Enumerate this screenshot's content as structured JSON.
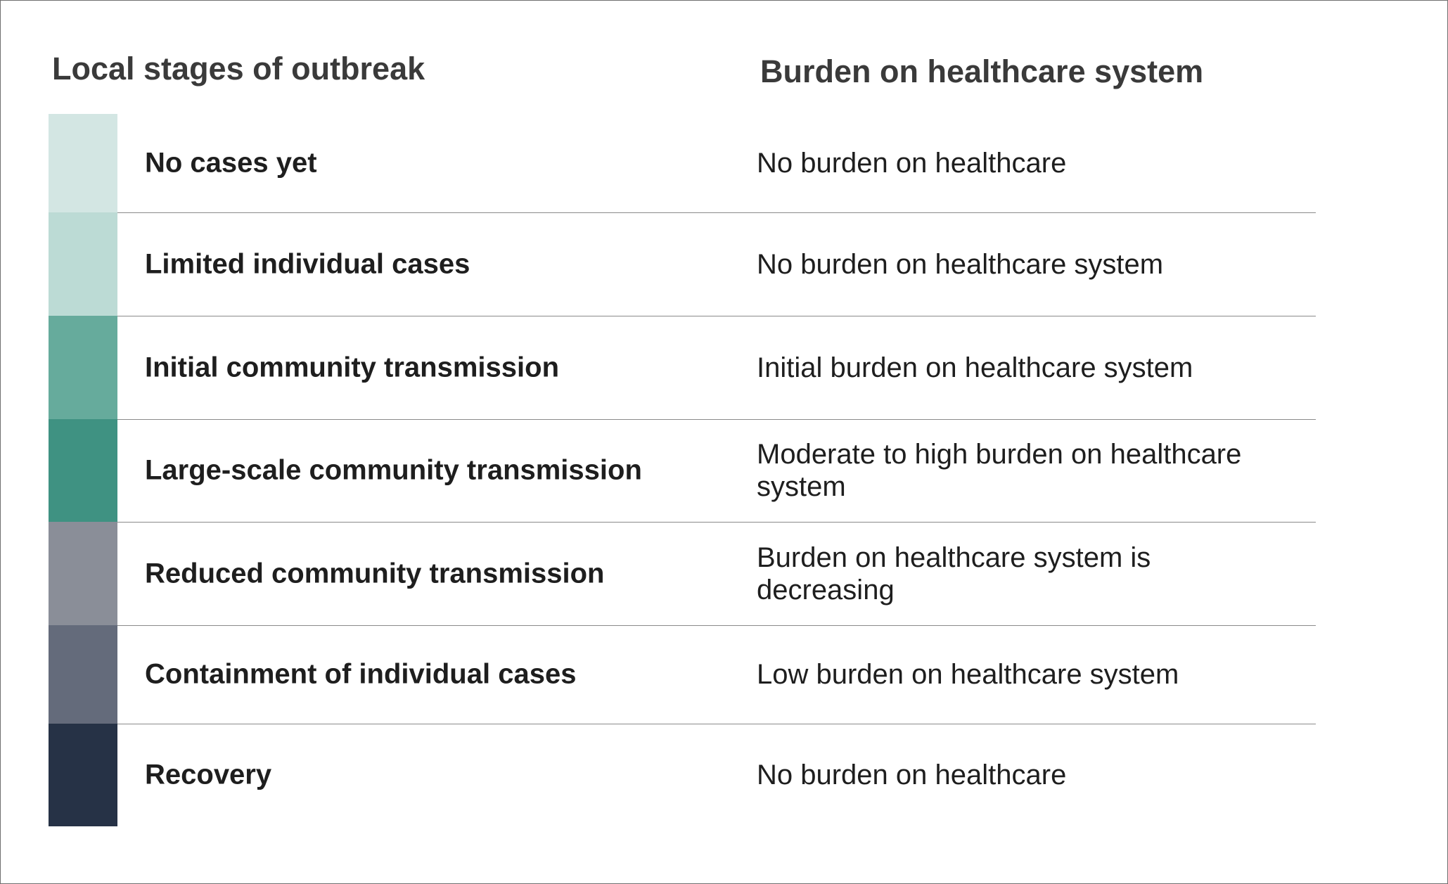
{
  "headers": {
    "left": "Local stages of outbreak",
    "right": "Burden on healthcare system"
  },
  "rows": [
    {
      "stage": "No cases yet",
      "burden": "No burden on healthcare",
      "color": "#d3e6e3"
    },
    {
      "stage": "Limited individual cases",
      "burden": "No burden on healthcare system",
      "color": "#bcdbd5"
    },
    {
      "stage": "Initial community transmission",
      "burden": "Initial burden on healthcare system",
      "color": "#66ab9c"
    },
    {
      "stage": "Large-scale community transmission",
      "burden": "Moderate to high burden on healthcare system",
      "color": "#3f9282"
    },
    {
      "stage": "Reduced community transmission",
      "burden": "Burden on healthcare system is decreasing",
      "color": "#8a8e98"
    },
    {
      "stage": "Containment of individual cases",
      "burden": "Low burden on healthcare system",
      "color": "#646b7b"
    },
    {
      "stage": "Recovery",
      "burden": "No burden on healthcare",
      "color": "#263246"
    }
  ]
}
